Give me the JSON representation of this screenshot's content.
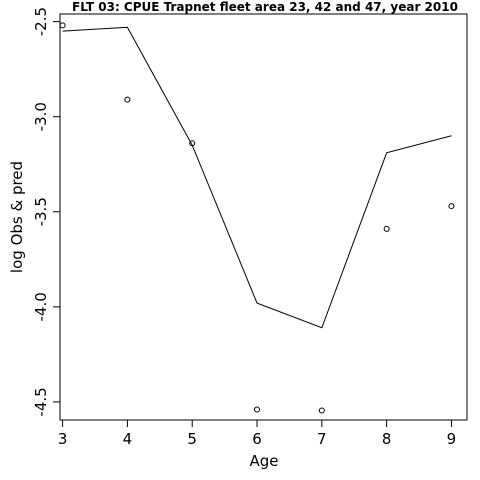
{
  "chart_data": {
    "type": "line",
    "title": "FLT 03: CPUE Trapnet fleet area 23, 42 and 47, year 2010",
    "xlabel": "Age",
    "ylabel": "log Obs & pred",
    "x": [
      3,
      4,
      5,
      6,
      7,
      8,
      9
    ],
    "series": [
      {
        "kind": "line",
        "values": [
          -2.55,
          -2.53,
          -3.15,
          -3.98,
          -4.11,
          -3.19,
          -3.1
        ]
      },
      {
        "kind": "points",
        "values": [
          -2.52,
          -2.91,
          -3.14,
          -4.54,
          -4.545,
          -3.59,
          -3.47
        ]
      }
    ],
    "xticks": [
      3,
      4,
      5,
      6,
      7,
      8,
      9
    ],
    "yticks": [
      -2.5,
      -3.0,
      -3.5,
      -4.0,
      -4.5
    ],
    "yticklabels": [
      "-2.5",
      "-3.0",
      "-3.5",
      "-4.0",
      "-4.5"
    ],
    "xlim": [
      2.96,
      9.24
    ],
    "ylim": [
      -4.595,
      -2.46
    ],
    "grid": false
  }
}
